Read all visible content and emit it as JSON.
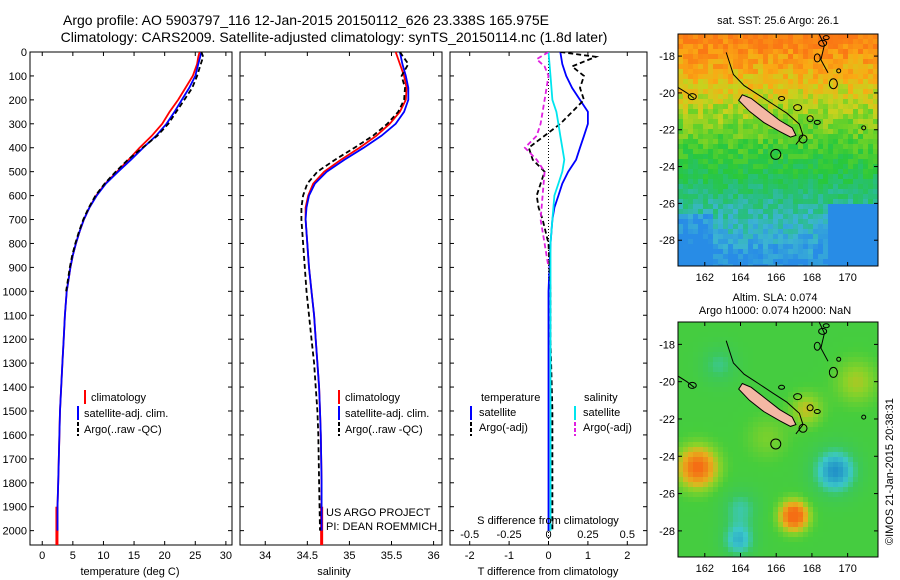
{
  "title": {
    "line1": "Argo profile: AO 5903797_116 12-Jan-2015 20150112_626 23.338S 165.975E",
    "line2": "Climatology: CARS2009. Satellite-adjusted climatology: synTS_20150114.nc (1.8d later)"
  },
  "colors": {
    "climatology": "#ff0000",
    "satellite": "#0000ff",
    "argo": "#000000",
    "sat_salinity": "#00e5ee",
    "argo_salinity_adj": "#e020e0",
    "land": "#f4b8a4"
  },
  "chart_data": [
    {
      "type": "line",
      "xlabel": "temperature (deg C)",
      "ylabel": "",
      "xlim": [
        -2,
        31
      ],
      "ylim": [
        2060,
        0
      ],
      "xticks": [
        0,
        5,
        10,
        15,
        20,
        25,
        30
      ],
      "yticks": [
        0,
        100,
        200,
        300,
        400,
        500,
        600,
        700,
        800,
        900,
        1000,
        1100,
        1200,
        1300,
        1400,
        1500,
        1600,
        1700,
        1800,
        1900,
        2000
      ],
      "legend": [
        "climatology",
        "satellite-adj. clim.",
        "Argo(..raw -QC)"
      ],
      "series": [
        {
          "name": "climatology",
          "color": "#ff0000",
          "x": [
            25.7,
            25.5,
            25.3,
            24.6,
            23.4,
            22.2,
            20.8,
            19.6,
            17.9,
            15.9,
            14.1,
            12.2,
            10.3,
            8.8,
            7.7,
            6.8,
            6.1,
            5.5,
            5.0,
            4.6,
            4.3,
            4.0,
            3.7,
            3.5,
            3.3,
            3.1,
            2.9,
            2.8,
            2.7,
            2.6,
            2.5,
            2.5,
            2.4
          ],
          "y": [
            0,
            20,
            50,
            100,
            150,
            200,
            250,
            300,
            350,
            400,
            450,
            500,
            550,
            600,
            650,
            700,
            750,
            800,
            850,
            900,
            950,
            1000,
            1100,
            1200,
            1300,
            1400,
            1500,
            1600,
            1700,
            1800,
            1900,
            2000,
            2040
          ]
        },
        {
          "name": "satellite-adj. clim.",
          "color": "#0000ff",
          "x": [
            26.0,
            25.8,
            25.5,
            25.0,
            24.0,
            22.8,
            21.6,
            20.3,
            18.6,
            16.5,
            14.5,
            12.4,
            10.4,
            8.9,
            7.7,
            6.8,
            6.1,
            5.5,
            5.0,
            4.6,
            4.3,
            4.0,
            3.7,
            3.5,
            3.3,
            3.1,
            2.9,
            2.8,
            2.7,
            2.6,
            2.5,
            2.5
          ],
          "y": [
            0,
            20,
            50,
            100,
            150,
            200,
            250,
            300,
            350,
            400,
            450,
            500,
            550,
            600,
            650,
            700,
            750,
            800,
            850,
            900,
            950,
            1000,
            1100,
            1200,
            1300,
            1400,
            1500,
            1600,
            1700,
            1800,
            1900,
            2000
          ]
        },
        {
          "name": "Argo(..raw -QC)",
          "color": "#000000",
          "dash": true,
          "x": [
            26.0,
            26.3,
            25.9,
            25.3,
            24.5,
            23.2,
            21.9,
            20.6,
            18.8,
            16.4,
            14.0,
            12.0,
            10.2,
            8.7,
            7.6,
            6.7,
            6.0,
            5.4,
            4.9,
            4.5,
            4.2,
            3.9
          ],
          "y": [
            0,
            20,
            50,
            100,
            150,
            200,
            250,
            300,
            350,
            400,
            450,
            500,
            550,
            600,
            650,
            700,
            750,
            800,
            850,
            900,
            950,
            1000
          ]
        }
      ]
    },
    {
      "type": "line",
      "xlabel": "salinity",
      "xlim": [
        33.7,
        36.1
      ],
      "ylim": [
        2060,
        0
      ],
      "xticks": [
        34,
        34.5,
        35,
        35.5,
        36
      ],
      "legend": [
        "climatology",
        "satellite-adj. clim.",
        "Argo(..raw -QC)"
      ],
      "annotation": [
        "US ARGO PROJECT",
        "PI: DEAN ROEMMICH"
      ],
      "series": [
        {
          "name": "climatology",
          "color": "#ff0000",
          "x": [
            35.55,
            35.6,
            35.65,
            35.68,
            35.67,
            35.6,
            35.48,
            35.32,
            35.12,
            34.9,
            34.7,
            34.57,
            34.51,
            34.48,
            34.48,
            34.5,
            34.52,
            34.55,
            34.58,
            34.6,
            34.62,
            34.64,
            34.65,
            34.66,
            34.67,
            34.67
          ],
          "y": [
            0,
            50,
            100,
            150,
            200,
            250,
            300,
            350,
            400,
            450,
            500,
            550,
            600,
            650,
            700,
            800,
            900,
            1000,
            1100,
            1200,
            1300,
            1400,
            1500,
            1600,
            1800,
            2040
          ]
        },
        {
          "name": "satellite-adj. clim.",
          "color": "#0000ff",
          "x": [
            35.6,
            35.63,
            35.67,
            35.7,
            35.7,
            35.65,
            35.55,
            35.38,
            35.17,
            34.94,
            34.73,
            34.59,
            34.52,
            34.49,
            34.48,
            34.5,
            34.52,
            34.55,
            34.58,
            34.6,
            34.62,
            34.64,
            34.65,
            34.66,
            34.67,
            34.67
          ],
          "y": [
            0,
            50,
            100,
            150,
            200,
            250,
            300,
            350,
            400,
            450,
            500,
            550,
            600,
            650,
            700,
            800,
            900,
            1000,
            1100,
            1200,
            1300,
            1400,
            1500,
            1600,
            1800,
            2000
          ]
        },
        {
          "name": "Argo(..raw -QC)",
          "color": "#000000",
          "dash": true,
          "x": [
            35.6,
            35.7,
            35.62,
            35.66,
            35.65,
            35.58,
            35.45,
            35.28,
            35.06,
            34.83,
            34.62,
            34.5,
            34.45,
            34.43,
            34.43,
            34.45,
            34.47,
            34.49,
            34.52,
            34.55,
            34.58,
            34.6,
            34.62,
            34.63,
            34.64,
            34.65
          ],
          "y": [
            0,
            50,
            100,
            150,
            200,
            250,
            300,
            350,
            400,
            450,
            500,
            550,
            600,
            650,
            700,
            800,
            900,
            1000,
            1100,
            1200,
            1300,
            1400,
            1500,
            1600,
            1800,
            2000
          ]
        }
      ]
    },
    {
      "type": "line",
      "xlabel": "T difference from climatology",
      "xlabel_top": "S difference from climatology",
      "xlim": [
        -2.5,
        2.5
      ],
      "ylim": [
        2060,
        0
      ],
      "xticks": [
        -2,
        -1,
        0,
        1,
        2
      ],
      "xticks_salinity": [
        -0.5,
        -0.25,
        0,
        0.25,
        0.5
      ],
      "legend_groups": {
        "temperature": [
          "satellite",
          "Argo(-adj)"
        ],
        "salinity": [
          "satellite",
          "Argo(-adj)"
        ]
      },
      "legend_heads": [
        "temperature",
        "salinity"
      ],
      "series": [
        {
          "name": "temperature satellite",
          "color": "#0000ff",
          "x": [
            0.3,
            0.35,
            0.45,
            0.6,
            0.8,
            1.0,
            1.0,
            0.9,
            0.8,
            0.7,
            0.5,
            0.35,
            0.25,
            0.15,
            0.1,
            0.05,
            0.0,
            0.0,
            0.0
          ],
          "y": [
            0,
            50,
            100,
            150,
            200,
            250,
            300,
            350,
            400,
            450,
            500,
            550,
            600,
            650,
            700,
            800,
            1000,
            1500,
            2000
          ]
        },
        {
          "name": "temperature Argo(-adj)",
          "color": "#000000",
          "dash": true,
          "x": [
            0.3,
            1.2,
            0.9,
            0.6,
            0.9,
            0.8,
            0.9,
            0.3,
            -0.5,
            -0.4,
            -0.1,
            -0.2,
            -0.3,
            -0.25,
            -0.15,
            0.0,
            0.05,
            0.05,
            0.1,
            0.1,
            0.1
          ],
          "y": [
            0,
            20,
            40,
            60,
            100,
            150,
            200,
            300,
            400,
            450,
            500,
            550,
            600,
            650,
            700,
            800,
            1000,
            1200,
            1500,
            1800,
            2000
          ]
        },
        {
          "name": "salinity satellite",
          "color": "#00e5ee",
          "x": [
            0.0,
            0.05,
            0.1,
            0.2,
            0.25,
            0.3,
            0.35,
            0.4,
            0.35,
            0.25,
            0.15,
            0.1,
            0.05,
            0.05,
            0.05
          ],
          "y": [
            0,
            100,
            200,
            250,
            300,
            350,
            400,
            450,
            500,
            550,
            600,
            700,
            800,
            1000,
            2000
          ]
        },
        {
          "name": "salinity Argo(-adj)",
          "color": "#e020e0",
          "dash": true,
          "x": [
            0.0,
            -0.3,
            -0.1,
            0.0,
            -0.1,
            -0.2,
            -0.3,
            -0.6,
            -0.3,
            -0.1,
            -0.15,
            -0.2,
            -0.1,
            0.0
          ],
          "y": [
            0,
            30,
            60,
            100,
            200,
            300,
            350,
            400,
            450,
            500,
            600,
            700,
            800,
            900
          ]
        }
      ]
    },
    {
      "type": "heatmap",
      "title": "sat. SST: 25.6 Argo: 26.1",
      "xlim": [
        160.5,
        171.7
      ],
      "ylim": [
        -29.4,
        -16.8
      ],
      "xticks": [
        162,
        164,
        166,
        168,
        170
      ],
      "yticks": [
        -18,
        -20,
        -22,
        -24,
        -26,
        -28
      ],
      "marker": {
        "lon": 165.975,
        "lat": -23.338
      }
    },
    {
      "type": "heatmap",
      "title": [
        "Altim. SLA: 0.074",
        "Argo h1000: 0.074 h2000: NaN"
      ],
      "xlim": [
        160.5,
        171.7
      ],
      "ylim": [
        -29.4,
        -16.8
      ],
      "xticks": [
        162,
        164,
        166,
        168,
        170
      ],
      "yticks": [
        -18,
        -20,
        -22,
        -24,
        -26,
        -28
      ],
      "marker": {
        "lon": 165.975,
        "lat": -23.338
      }
    }
  ],
  "footer": {
    "credit": "©IMOS 21-Jan-2015 20:38:31"
  }
}
